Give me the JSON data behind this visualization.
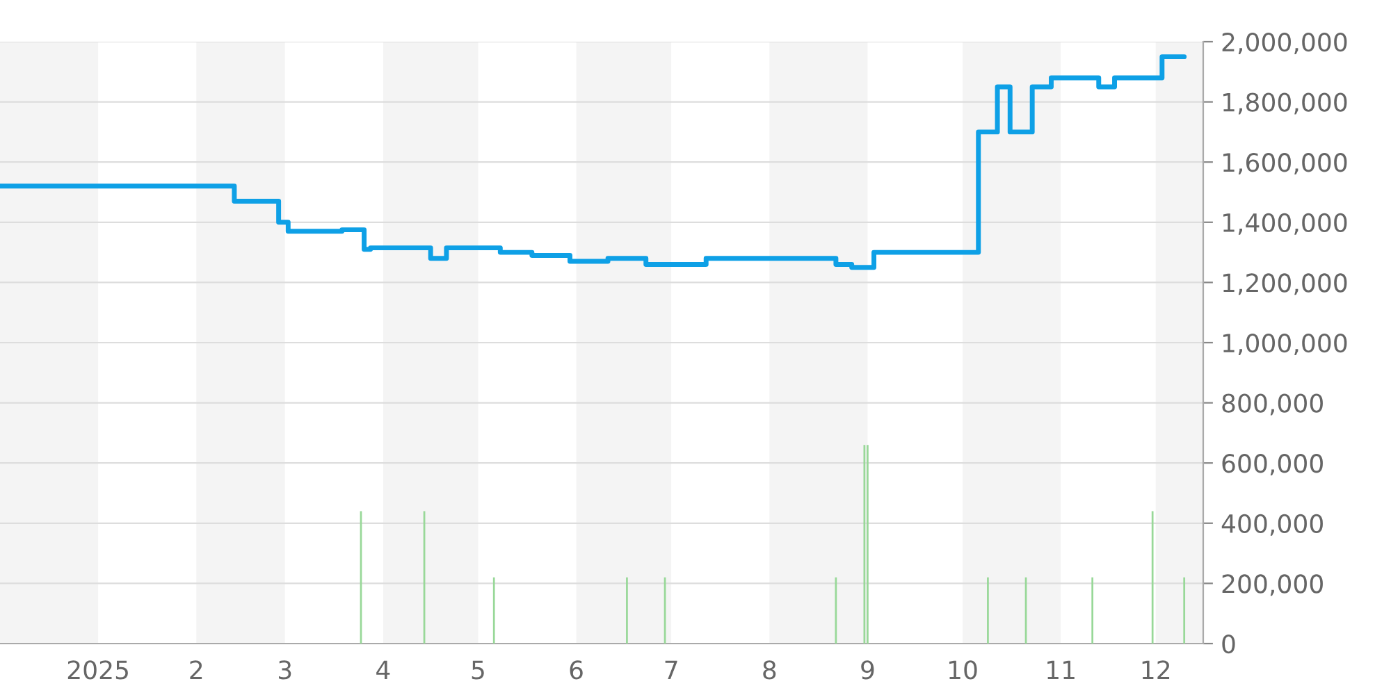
{
  "chart_data": {
    "type": "step",
    "series": [
      {
        "color": "#0ea0e6",
        "x": [
          "2024-12-01",
          "2025-02-13",
          "2025-02-27",
          "2025-03-02",
          "2025-03-19",
          "2025-03-26",
          "2025-03-28",
          "2025-04-16",
          "2025-04-21",
          "2025-05-08",
          "2025-05-18",
          "2025-05-30",
          "2025-06-11",
          "2025-06-23",
          "2025-07-12",
          "2025-08-22",
          "2025-08-27",
          "2025-09-03",
          "2025-10-06",
          "2025-10-12",
          "2025-10-16",
          "2025-10-23",
          "2025-10-29",
          "2025-11-13",
          "2025-11-18",
          "2025-12-03",
          "2025-12-10"
        ],
        "values": [
          1520000,
          1470000,
          1400000,
          1370000,
          1375000,
          1310000,
          1315000,
          1280000,
          1315000,
          1300000,
          1290000,
          1270000,
          1280000,
          1260000,
          1280000,
          1260000,
          1250000,
          1300000,
          1700000,
          1850000,
          1700000,
          1850000,
          1880000,
          1850000,
          1880000,
          1950000,
          1950000
        ]
      },
      {
        "type": "bar",
        "color": "#98d898",
        "x": [
          "2025-03-25",
          "2025-04-14",
          "2025-05-06",
          "2025-06-17",
          "2025-06-29",
          "2025-08-22",
          "2025-08-31",
          "2025-09-01",
          "2025-10-09",
          "2025-10-21",
          "2025-11-11",
          "2025-11-30",
          "2025-12-10"
        ],
        "values": [
          440000,
          440000,
          220000,
          220000,
          220000,
          220000,
          660000,
          660000,
          220000,
          220000,
          220000,
          440000,
          220000
        ]
      }
    ],
    "xlim": [
      "2024-12-01",
      "2025-12-16"
    ],
    "xticks": [
      {
        "value": "2025-01-01",
        "label": "2025"
      },
      {
        "value": "2025-02-01",
        "label": "2"
      },
      {
        "value": "2025-03-01",
        "label": "3"
      },
      {
        "value": "2025-04-01",
        "label": "4"
      },
      {
        "value": "2025-05-01",
        "label": "5"
      },
      {
        "value": "2025-06-01",
        "label": "6"
      },
      {
        "value": "2025-07-01",
        "label": "7"
      },
      {
        "value": "2025-08-01",
        "label": "8"
      },
      {
        "value": "2025-09-01",
        "label": "9"
      },
      {
        "value": "2025-10-01",
        "label": "10"
      },
      {
        "value": "2025-11-01",
        "label": "11"
      },
      {
        "value": "2025-12-01",
        "label": "12"
      }
    ],
    "ylim": [
      0,
      2000000
    ],
    "yticks": [
      0,
      {
        "value": 200000,
        "label": "200,000"
      },
      {
        "value": 400000,
        "label": "400,000"
      },
      {
        "value": 600000,
        "label": "600,000"
      },
      {
        "value": 800000,
        "label": "800,000"
      },
      {
        "value": 1000000,
        "label": "1,000,000"
      },
      {
        "value": 1200000,
        "label": "1,200,000"
      },
      {
        "value": 1400000,
        "label": "1,400,000"
      },
      {
        "value": 1600000,
        "label": "1,600,000"
      },
      {
        "value": 1800000,
        "label": "1,800,000"
      },
      {
        "value": 2000000,
        "label": "2,000,000"
      }
    ],
    "grid": "y",
    "bands": [
      {
        "axis": "x",
        "from": "2024-12-01",
        "to": "2025-01-01",
        "color": "#f4f4f4"
      },
      {
        "axis": "x",
        "from": "2025-02-01",
        "to": "2025-03-01",
        "color": "#f4f4f4"
      },
      {
        "axis": "x",
        "from": "2025-04-01",
        "to": "2025-05-01",
        "color": "#f4f4f4"
      },
      {
        "axis": "x",
        "from": "2025-06-01",
        "to": "2025-07-01",
        "color": "#f4f4f4"
      },
      {
        "axis": "x",
        "from": "2025-08-01",
        "to": "2025-09-01",
        "color": "#f4f4f4"
      },
      {
        "axis": "x",
        "from": "2025-10-01",
        "to": "2025-11-01",
        "color": "#f4f4f4"
      },
      {
        "axis": "x",
        "from": "2025-12-01",
        "to": "2025-12-16",
        "color": "#f4f4f4"
      }
    ]
  }
}
